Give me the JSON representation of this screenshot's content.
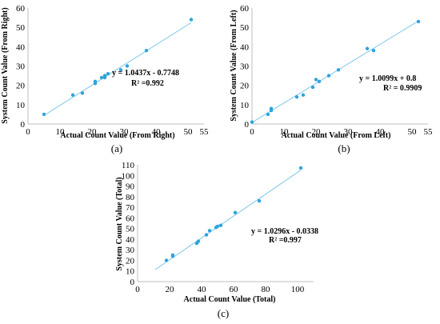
{
  "chart_data": [
    {
      "panel": "a",
      "type": "scatter",
      "caption": "(a)",
      "xlabel": "Actual Count Value (From Right)",
      "ylabel": "System Count Value (From Right)",
      "xlim": [
        0,
        55
      ],
      "ylim": [
        0,
        60
      ],
      "xticks": [
        0,
        10,
        20,
        30,
        40,
        50,
        55
      ],
      "yticks": [
        0,
        10,
        20,
        30,
        40,
        50,
        60
      ],
      "points": [
        [
          5,
          5
        ],
        [
          14,
          15
        ],
        [
          17,
          16
        ],
        [
          21,
          21
        ],
        [
          21,
          22
        ],
        [
          23,
          24
        ],
        [
          24,
          24
        ],
        [
          24,
          25
        ],
        [
          25,
          26
        ],
        [
          29,
          28
        ],
        [
          31,
          30
        ],
        [
          37,
          38
        ],
        [
          51,
          54
        ]
      ],
      "trendline": {
        "slope": 1.0437,
        "intercept": -0.7748,
        "x_range": [
          5,
          51
        ]
      },
      "equation": "y = 1.0437x - 0.7748",
      "r2_label": "R² =0.992",
      "marker_color": "#2ea3dc",
      "line_color": "#7cc7ea"
    },
    {
      "panel": "b",
      "type": "scatter",
      "caption": "(b)",
      "xlabel": "Actual  Count Value (From Left)",
      "ylabel": "System Count Value (From Left)",
      "xlim": [
        0,
        55
      ],
      "ylim": [
        0,
        60
      ],
      "xticks": [
        0,
        10,
        20,
        30,
        40,
        50,
        55
      ],
      "yticks": [
        0,
        10,
        20,
        30,
        40,
        50,
        60
      ],
      "points": [
        [
          0,
          1
        ],
        [
          5,
          5
        ],
        [
          6,
          7
        ],
        [
          6,
          8
        ],
        [
          14,
          14
        ],
        [
          16,
          15
        ],
        [
          19,
          19
        ],
        [
          20,
          23
        ],
        [
          21,
          22
        ],
        [
          24,
          25
        ],
        [
          27,
          28
        ],
        [
          36,
          39
        ],
        [
          38,
          38
        ],
        [
          52,
          53
        ]
      ],
      "trendline": {
        "slope": 1.0099,
        "intercept": 0.8,
        "x_range": [
          0,
          52
        ]
      },
      "equation": "y = 1.0099x + 0.8",
      "r2_label": "R² = 0.9909",
      "marker_color": "#2ea3dc",
      "line_color": "#7cc7ea"
    },
    {
      "panel": "c",
      "type": "scatter",
      "caption": "(c)",
      "xlabel": "Actual  Count Value (Total)",
      "ylabel": "System Count Value (Total)",
      "xlim": [
        0,
        110
      ],
      "ylim": [
        0,
        110
      ],
      "xticks": [
        0,
        20,
        40,
        60,
        80,
        100
      ],
      "yticks": [
        0,
        10,
        20,
        30,
        40,
        50,
        60,
        70,
        80,
        90,
        100,
        110
      ],
      "points": [
        [
          18,
          20
        ],
        [
          22,
          24
        ],
        [
          22,
          25
        ],
        [
          37,
          36
        ],
        [
          38,
          38
        ],
        [
          43,
          44
        ],
        [
          45,
          48
        ],
        [
          49,
          51
        ],
        [
          50,
          52
        ],
        [
          52,
          53
        ],
        [
          61,
          65
        ],
        [
          76,
          76
        ],
        [
          102,
          107
        ]
      ],
      "trendline": {
        "slope": 1.0296,
        "intercept": -0.0338,
        "x_range": [
          11,
          102
        ]
      },
      "equation": "y = 1.0296x - 0.0338",
      "r2_label": "R² =0.997",
      "marker_color": "#2ea3dc",
      "line_color": "#7cc7ea"
    }
  ]
}
